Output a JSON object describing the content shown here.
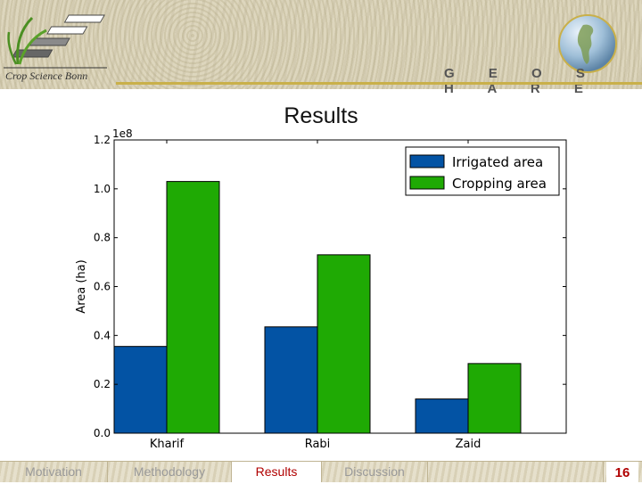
{
  "header": {
    "logo_text": "Crop Science Bonn",
    "brand": "G E O S H A R E"
  },
  "slide": {
    "title": "Results"
  },
  "chart_data": {
    "type": "bar",
    "categories": [
      "Kharif",
      "Rabi",
      "Zaid"
    ],
    "series": [
      {
        "name": "Irrigated area",
        "color": "#0353a4",
        "values": [
          35500000,
          43500000,
          14000000
        ]
      },
      {
        "name": "Cropping area",
        "color": "#1faa04",
        "values": [
          103000000,
          73000000,
          28500000
        ]
      }
    ],
    "ylabel": "Area (ha)",
    "y_offset_text": "1e8",
    "ylim": [
      0,
      120000000
    ],
    "yticks": [
      0,
      20000000,
      40000000,
      60000000,
      80000000,
      100000000,
      120000000
    ],
    "ytick_labels": [
      "0.0",
      "0.2",
      "0.4",
      "0.6",
      "0.8",
      "1.0",
      "1.2"
    ],
    "legend_position": "top-right",
    "grid": false
  },
  "footer": {
    "tabs": [
      {
        "label": "Motivation",
        "active": false
      },
      {
        "label": "Methodology",
        "active": false
      },
      {
        "label": "Results",
        "active": true
      },
      {
        "label": "Discussion",
        "active": false
      },
      {
        "label": "",
        "active": false
      }
    ],
    "page": "16"
  }
}
